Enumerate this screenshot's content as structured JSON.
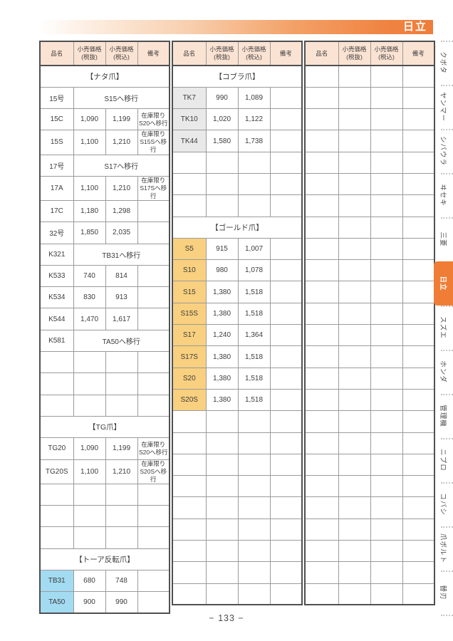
{
  "page": {
    "brand": "日立",
    "page_number": "− 133 −"
  },
  "colors": {
    "accent_orange": "#f07d35",
    "header_cell_peach": "#fbe3d3",
    "gold_cell": "#f9d07f",
    "gray_cell": "#e9e9e9",
    "blue_cell": "#a3dbf2"
  },
  "columns": [
    "品名",
    "小売価格\n(税抜)",
    "小売価格\n(税込)",
    "備考"
  ],
  "tables": [
    {
      "rows": [
        {
          "type": "section",
          "label": "【ナタ爪】"
        },
        {
          "type": "merged",
          "name": "15号",
          "text": "S15へ移行"
        },
        {
          "type": "data",
          "name": "15C",
          "ex": "1,090",
          "inc": "1,199",
          "note": "在庫限り\nS20へ移行"
        },
        {
          "type": "data",
          "name": "15S",
          "ex": "1,100",
          "inc": "1,210",
          "note": "在庫限り\nS15Sへ移行"
        },
        {
          "type": "merged",
          "name": "17号",
          "text": "S17へ移行"
        },
        {
          "type": "data",
          "name": "17A",
          "ex": "1,100",
          "inc": "1,210",
          "note": "在庫限り\nS17Sへ移行"
        },
        {
          "type": "data",
          "name": "17C",
          "ex": "1,180",
          "inc": "1,298",
          "note": ""
        },
        {
          "type": "data",
          "name": "32号",
          "ex": "1,850",
          "inc": "2,035",
          "note": ""
        },
        {
          "type": "merged",
          "name": "K321",
          "text": "TB31へ移行"
        },
        {
          "type": "data",
          "name": "K533",
          "ex": "740",
          "inc": "814",
          "note": ""
        },
        {
          "type": "data",
          "name": "K534",
          "ex": "830",
          "inc": "913",
          "note": ""
        },
        {
          "type": "data",
          "name": "K544",
          "ex": "1,470",
          "inc": "1,617",
          "note": ""
        },
        {
          "type": "merged",
          "name": "K581",
          "text": "TA50へ移行"
        },
        {
          "type": "empty"
        },
        {
          "type": "empty"
        },
        {
          "type": "empty"
        },
        {
          "type": "section",
          "label": "【TG爪】"
        },
        {
          "type": "data",
          "name": "TG20",
          "ex": "1,090",
          "inc": "1,199",
          "note": "在庫限り\nS20へ移行"
        },
        {
          "type": "data",
          "name": "TG20S",
          "ex": "1,100",
          "inc": "1,210",
          "note": "在庫限り\nS20Sへ移行"
        },
        {
          "type": "empty"
        },
        {
          "type": "empty"
        },
        {
          "type": "empty"
        },
        {
          "type": "section",
          "label": "【トーア反転爪】"
        },
        {
          "type": "data",
          "name": "TB31",
          "ex": "680",
          "inc": "748",
          "note": "",
          "bg": "blue"
        },
        {
          "type": "data",
          "name": "TA50",
          "ex": "900",
          "inc": "990",
          "note": "",
          "bg": "blue"
        }
      ]
    },
    {
      "rows": [
        {
          "type": "section",
          "label": "【コブラ爪】"
        },
        {
          "type": "data",
          "name": "TK7",
          "ex": "990",
          "inc": "1,089",
          "note": "",
          "bg": "gray"
        },
        {
          "type": "data",
          "name": "TK10",
          "ex": "1,020",
          "inc": "1,122",
          "note": "",
          "bg": "gray"
        },
        {
          "type": "data",
          "name": "TK44",
          "ex": "1,580",
          "inc": "1,738",
          "note": "",
          "bg": "gray"
        },
        {
          "type": "empty"
        },
        {
          "type": "empty"
        },
        {
          "type": "empty"
        },
        {
          "type": "section",
          "label": "【ゴールド爪】"
        },
        {
          "type": "data",
          "name": "S5",
          "ex": "915",
          "inc": "1,007",
          "note": "",
          "bg": "gold"
        },
        {
          "type": "data",
          "name": "S10",
          "ex": "980",
          "inc": "1,078",
          "note": "",
          "bg": "gold"
        },
        {
          "type": "data",
          "name": "S15",
          "ex": "1,380",
          "inc": "1,518",
          "note": "",
          "bg": "gold"
        },
        {
          "type": "data",
          "name": "S15S",
          "ex": "1,380",
          "inc": "1,518",
          "note": "",
          "bg": "gold"
        },
        {
          "type": "data",
          "name": "S17",
          "ex": "1,240",
          "inc": "1,364",
          "note": "",
          "bg": "gold"
        },
        {
          "type": "data",
          "name": "S17S",
          "ex": "1,380",
          "inc": "1,518",
          "note": "",
          "bg": "gold"
        },
        {
          "type": "data",
          "name": "S20",
          "ex": "1,380",
          "inc": "1,518",
          "note": "",
          "bg": "gold"
        },
        {
          "type": "data",
          "name": "S20S",
          "ex": "1,380",
          "inc": "1,518",
          "note": "",
          "bg": "gold"
        },
        {
          "type": "empty"
        },
        {
          "type": "empty"
        },
        {
          "type": "empty"
        },
        {
          "type": "empty"
        },
        {
          "type": "empty"
        },
        {
          "type": "empty"
        },
        {
          "type": "empty"
        },
        {
          "type": "empty"
        },
        {
          "type": "empty"
        }
      ]
    },
    {
      "rows": [
        {
          "type": "empty"
        },
        {
          "type": "empty"
        },
        {
          "type": "empty"
        },
        {
          "type": "empty"
        },
        {
          "type": "empty"
        },
        {
          "type": "empty"
        },
        {
          "type": "empty"
        },
        {
          "type": "empty"
        },
        {
          "type": "empty"
        },
        {
          "type": "empty"
        },
        {
          "type": "empty"
        },
        {
          "type": "empty"
        },
        {
          "type": "empty"
        },
        {
          "type": "empty"
        },
        {
          "type": "empty"
        },
        {
          "type": "empty"
        },
        {
          "type": "empty"
        },
        {
          "type": "empty"
        },
        {
          "type": "empty"
        },
        {
          "type": "empty"
        },
        {
          "type": "empty"
        },
        {
          "type": "empty"
        },
        {
          "type": "empty"
        },
        {
          "type": "empty"
        },
        {
          "type": "empty"
        }
      ]
    }
  ],
  "sidebar": {
    "items": [
      {
        "label": "クボタ",
        "active": false
      },
      {
        "label": "ヤンマー",
        "active": false
      },
      {
        "label": "シバウラ",
        "active": false
      },
      {
        "label": "ヰセキ",
        "active": false
      },
      {
        "label": "三菱",
        "active": false
      },
      {
        "label": "日立",
        "active": true
      },
      {
        "label": "スズエ",
        "active": false
      },
      {
        "label": "ホンダ",
        "active": false
      },
      {
        "label": "管理機",
        "active": false
      },
      {
        "label": "ニプロ",
        "active": false
      },
      {
        "label": "コバシ",
        "active": false
      },
      {
        "label": "爪ボルト",
        "active": false
      },
      {
        "label": "替刃",
        "active": false
      }
    ]
  }
}
